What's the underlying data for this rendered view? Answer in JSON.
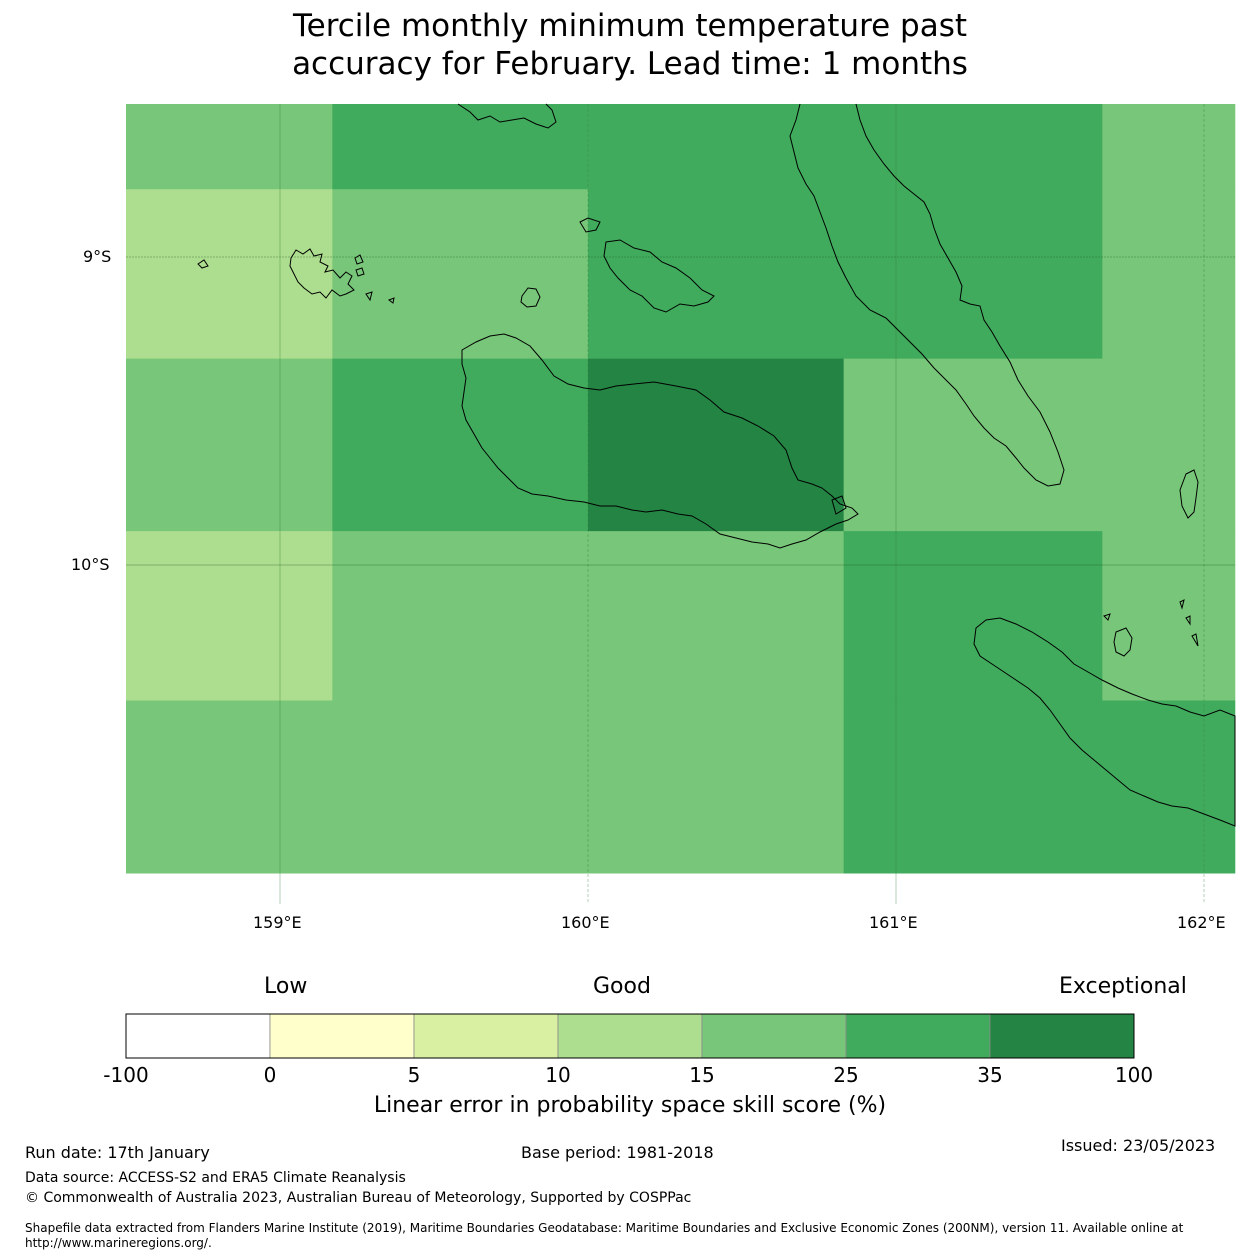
{
  "title_line1": "Tercile monthly minimum temperature past",
  "title_line2": "accuracy for February. Lead time: 1 months",
  "map": {
    "lon_labels": [
      "159°E",
      "160°E",
      "161°E",
      "162°E"
    ],
    "lat_labels": [
      "9°S",
      "10°S"
    ],
    "grid_cells": [
      {
        "lon": [
          158.5,
          159.17
        ],
        "lat": [
          -8.78,
          -8.39
        ],
        "category": "15-25"
      },
      {
        "lon": [
          159.17,
          160.83
        ],
        "lat": [
          -8.78,
          -8.39
        ],
        "category": "25-35"
      },
      {
        "lon": [
          160.83,
          161.67
        ],
        "lat": [
          -8.78,
          -8.39
        ],
        "category": "25-35"
      },
      {
        "lon": [
          161.67,
          162.1
        ],
        "lat": [
          -8.78,
          -8.39
        ],
        "category": "15-25"
      },
      {
        "lon": [
          158.5,
          159.17
        ],
        "lat": [
          -9.33,
          -8.78
        ],
        "category": "10-15"
      },
      {
        "lon": [
          159.17,
          160.0
        ],
        "lat": [
          -9.33,
          -8.78
        ],
        "category": "15-25"
      },
      {
        "lon": [
          160.0,
          161.67
        ],
        "lat": [
          -9.33,
          -8.78
        ],
        "category": "25-35"
      },
      {
        "lon": [
          161.67,
          162.1
        ],
        "lat": [
          -9.33,
          -8.78
        ],
        "category": "15-25"
      },
      {
        "lon": [
          158.5,
          159.17
        ],
        "lat": [
          -9.89,
          -9.33
        ],
        "category": "15-25"
      },
      {
        "lon": [
          159.17,
          160.0
        ],
        "lat": [
          -9.89,
          -9.33
        ],
        "category": "25-35"
      },
      {
        "lon": [
          160.0,
          160.83
        ],
        "lat": [
          -9.89,
          -9.33
        ],
        "category": "35-100"
      },
      {
        "lon": [
          160.83,
          162.1
        ],
        "lat": [
          -9.89,
          -9.33
        ],
        "category": "15-25"
      },
      {
        "lon": [
          158.5,
          159.17
        ],
        "lat": [
          -10.44,
          -9.89
        ],
        "category": "10-15"
      },
      {
        "lon": [
          159.17,
          160.83
        ],
        "lat": [
          -10.44,
          -9.89
        ],
        "category": "15-25"
      },
      {
        "lon": [
          160.83,
          161.67
        ],
        "lat": [
          -10.44,
          -9.89
        ],
        "category": "25-35"
      },
      {
        "lon": [
          161.67,
          162.1
        ],
        "lat": [
          -10.44,
          -9.89
        ],
        "category": "15-25"
      },
      {
        "lon": [
          158.5,
          160.83
        ],
        "lat": [
          -11.0,
          -10.44
        ],
        "category": "15-25"
      },
      {
        "lon": [
          160.83,
          162.1
        ],
        "lat": [
          -11.0,
          -10.44
        ],
        "category": "25-35"
      }
    ]
  },
  "colorbar": {
    "low_label": "Low",
    "good_label": "Good",
    "exceptional_label": "Exceptional",
    "ticks": [
      "-100",
      "0",
      "5",
      "10",
      "15",
      "25",
      "35",
      "100"
    ],
    "colors": [
      "#ffffff",
      "#ffffcc",
      "#d9f0a3",
      "#addd8e",
      "#78c679",
      "#41ab5d",
      "#238443"
    ],
    "category_keys": [
      "-100-0",
      "0-5",
      "5-10",
      "10-15",
      "15-25",
      "25-35",
      "35-100"
    ],
    "label": "Linear error in probability space skill score (%)"
  },
  "footer": {
    "run_date": "Run date: 17th January",
    "base_period": "Base period: 1981-2018",
    "issued": "Issued: 23/05/2023",
    "data_source": "Data source: ACCESS-S2 and ERA5 Climate Reanalysis",
    "copyright": "© Commonwealth of Australia 2023, Australian Bureau of Meteorology, Supported by COSPPac",
    "shapefile_line1": "Shapefile data extracted from Flanders Marine Institute (2019), Maritime Boundaries Geodatabase: Maritime Boundaries and Exclusive Economic Zones (200NM), version 11. Available online at",
    "shapefile_line2": "http://www.marineregions.org/."
  }
}
